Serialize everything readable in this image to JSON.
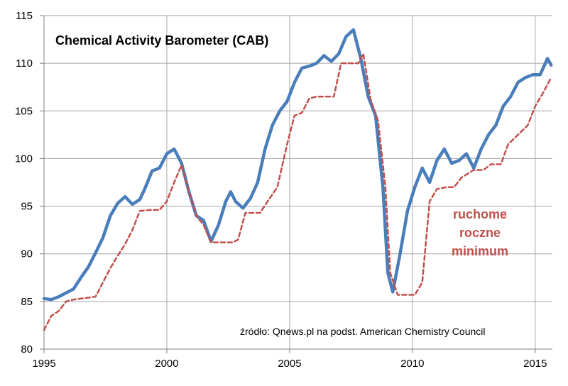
{
  "chart_data": {
    "type": "line",
    "title": "Chemical Activity Barometer (CAB)",
    "source": "źródło: Qnews.pl na podst. American Chemistry Council",
    "annotation": [
      "ruchome",
      "roczne",
      "minimum"
    ],
    "xlabel": "",
    "ylabel": "",
    "xlim": [
      1995,
      2015.7
    ],
    "ylim": [
      80,
      115
    ],
    "xticks": [
      1995,
      2000,
      2005,
      2010,
      2015
    ],
    "yticks": [
      80,
      85,
      90,
      95,
      100,
      105,
      110,
      115
    ],
    "grid": true,
    "colors": {
      "cab": "#4a7ebb",
      "min": "#c0504d",
      "grid": "#a6a6a6",
      "axis": "#808080"
    },
    "series": [
      {
        "name": "CAB",
        "style": "solid",
        "x": [
          1995.0,
          1995.3,
          1995.6,
          1995.9,
          1996.2,
          1996.5,
          1996.8,
          1997.1,
          1997.4,
          1997.7,
          1998.0,
          1998.3,
          1998.6,
          1998.9,
          1999.1,
          1999.4,
          1999.7,
          2000.0,
          2000.3,
          2000.6,
          2000.9,
          2001.2,
          2001.5,
          2001.8,
          2002.1,
          2002.4,
          2002.6,
          2002.8,
          2003.1,
          2003.4,
          2003.7,
          2004.0,
          2004.3,
          2004.6,
          2004.9,
          2005.2,
          2005.5,
          2005.8,
          2006.1,
          2006.4,
          2006.7,
          2007.0,
          2007.3,
          2007.6,
          2007.9,
          2008.2,
          2008.5,
          2008.8,
          2009.0,
          2009.2,
          2009.5,
          2009.8,
          2010.1,
          2010.4,
          2010.7,
          2011.0,
          2011.3,
          2011.6,
          2011.9,
          2012.2,
          2012.5,
          2012.8,
          2013.1,
          2013.4,
          2013.7,
          2014.0,
          2014.3,
          2014.6,
          2014.9,
          2015.2,
          2015.5,
          2015.65
        ],
        "y": [
          85.3,
          85.2,
          85.5,
          85.9,
          86.3,
          87.5,
          88.6,
          90.1,
          91.7,
          94.0,
          95.3,
          96.0,
          95.2,
          95.7,
          96.8,
          98.7,
          99.0,
          100.5,
          101.0,
          99.5,
          96.5,
          94.0,
          93.5,
          91.3,
          93.0,
          95.5,
          96.5,
          95.5,
          94.8,
          95.8,
          97.5,
          101.0,
          103.5,
          105.0,
          106.0,
          108.0,
          109.5,
          109.7,
          110.0,
          110.8,
          110.2,
          111.0,
          112.8,
          113.5,
          110.5,
          106.5,
          104.5,
          97.0,
          88.0,
          86.0,
          90.0,
          94.5,
          97.0,
          99.0,
          97.5,
          99.8,
          101.0,
          99.5,
          99.8,
          100.5,
          99.0,
          101.0,
          102.5,
          103.5,
          105.5,
          106.5,
          108.0,
          108.5,
          108.8,
          108.8,
          110.5,
          109.8
        ]
      },
      {
        "name": "ruchome roczne minimum",
        "style": "dashed",
        "x": [
          1995.0,
          1995.3,
          1995.6,
          1995.9,
          1996.2,
          1996.5,
          1996.8,
          1997.1,
          1997.4,
          1997.7,
          1998.0,
          1998.3,
          1998.6,
          1998.9,
          1999.3,
          1999.7,
          2000.0,
          2000.3,
          2000.6,
          2000.9,
          2001.2,
          2001.5,
          2001.8,
          2002.1,
          2002.4,
          2002.7,
          2002.9,
          2003.2,
          2003.5,
          2003.8,
          2004.1,
          2004.5,
          2004.9,
          2005.2,
          2005.5,
          2005.8,
          2006.1,
          2006.5,
          2006.8,
          2007.1,
          2007.5,
          2007.8,
          2008.0,
          2008.3,
          2008.6,
          2008.9,
          2009.1,
          2009.4,
          2009.7,
          2010.0,
          2010.1,
          2010.4,
          2010.7,
          2011.0,
          2011.4,
          2011.7,
          2012.0,
          2012.5,
          2012.9,
          2013.2,
          2013.6,
          2013.9,
          2014.3,
          2014.7,
          2015.0,
          2015.3,
          2015.65
        ],
        "y": [
          82.0,
          83.5,
          84.0,
          85.0,
          85.2,
          85.3,
          85.4,
          85.5,
          87.0,
          88.5,
          89.8,
          91.0,
          92.5,
          94.5,
          94.6,
          94.6,
          95.5,
          97.5,
          99.3,
          96.5,
          94.0,
          93.0,
          91.2,
          91.2,
          91.2,
          91.2,
          91.5,
          94.3,
          94.3,
          94.3,
          95.5,
          97.0,
          101.5,
          104.5,
          104.8,
          106.3,
          106.5,
          106.5,
          106.5,
          110.0,
          110.0,
          110.0,
          111.0,
          106.2,
          104.0,
          97.0,
          88.0,
          85.7,
          85.7,
          85.7,
          85.7,
          87.0,
          95.5,
          96.8,
          97.0,
          97.0,
          98.0,
          98.8,
          98.8,
          99.4,
          99.4,
          101.5,
          102.5,
          103.5,
          105.5,
          106.8,
          108.5
        ]
      }
    ]
  }
}
